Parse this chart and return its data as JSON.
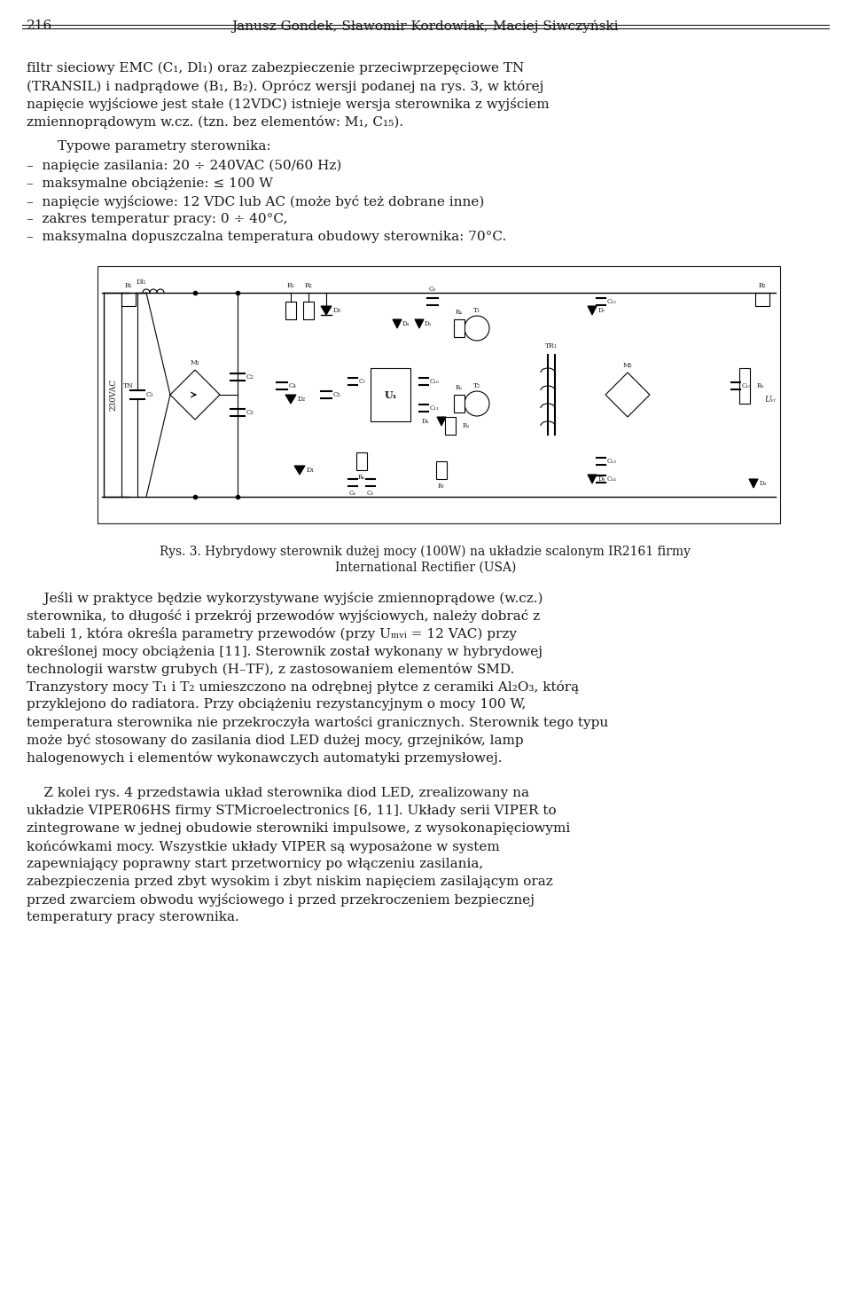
{
  "page_number": "216",
  "header_authors": "Janusz Gondek, Sławomir Kordowiak, Maciej Siwczyński",
  "background_color": "#ffffff",
  "text_color": "#1a1a1a",
  "font_family": "serif",
  "header_fontsize": 11,
  "body_fontsize": 11,
  "paragraph1": "filtr sieciowy EMC (C₁, Dl₁) oraz zabezpieczenie przeciwprzepęciowe TN\n(TRANSIL) i nadprądowe (B₁, B₂). Oprócz wersji podanej na rys. 3, w której\nnapięcie wyjściowe jest stałe (12VDC) istnieje wersja sterownika z wyjściem\nzmiennoprądowym w.cz. (tzn. bez elementów: M₁, C₁₅).",
  "paragraph_typowe_header": "    Typowe parametry sterownika:",
  "bullet_items": [
    "–  napięcie zasilania: 20 ÷ 240VAC (50/60 Hz)",
    "–  maksymalne obciążenie: ≤ 100 W",
    "–  napięcie wyjściowe: 12 VDC lub AC (może być też dobrane inne)",
    "–  zakres temperatur pracy: 0 ÷ 40°C,",
    "–  maksymalna dopuszczalna temperatura obudowy sterownika: 70°C."
  ],
  "caption_line1": "Rys. 3. Hybrydowy sterownik dużej mocy (100W) na układzie scalonym IR2161 firmy",
  "caption_line2": "International Rectifier (USA)",
  "paragraph2_indent": "    Jeśli w praktyce będzie wykorzystywane wyjście zmiennoprądowe (w.cz.)",
  "paragraph2_rest": "sterownika, to długość i przekrój przewodów wyjściowych, należy dobrać z\ntabeli 1, która określa parametry przewodów (przy Uₘᵥᵢ = 12 VAC) przy\nokreślonej mocy obciążenia [11]. Sterownik został wykonany w hybrydowej\ntechnologii warstw grubych (H–TF), z zastosowaniem elementów SMD.\nTranzystory mocy T₁ i T₂ umieszczono na odrębnej płytce z ceramiki Al₂O₃, którą\nprzyklejono do radiatora. Przy obciążeniu rezystancyjnym o mocy 100 W,\ntemperatura sterownika nie przekroczyła wartości granicznych. Sterownik tego typu\nmoże być stosowany do zasilania diod LED dużej mocy, grzejników, lamp\nhalogenowych i elementów wykonawczych automatyki przemysłowej.",
  "paragraph3_indent": "    Z kolei rys. 4 przedstawia układ sterownika diod LED, zrealizowany na",
  "paragraph3_rest": "układzie VIPER06HS firmy STMicroelectronics [6, 11]. Układy serii VIPER to\nzintegrowane w jednej obudowie sterowniki impulsowe, z wysokonapięciowymi\nkońcówkami mocy. Wszystkie układy VIPER są wyposażone w system\nzapewniający poprawny start przetwornicy po włączeniu zasilania,\nzabezpieczenia przed zbyt wysokim i zbyt niskim napięciem zasilającym oraz\nprzed zwarciem obwodu wyjściowego i przed przekroczeniem bezpiecznej\ntemperatury pracy sterownika."
}
